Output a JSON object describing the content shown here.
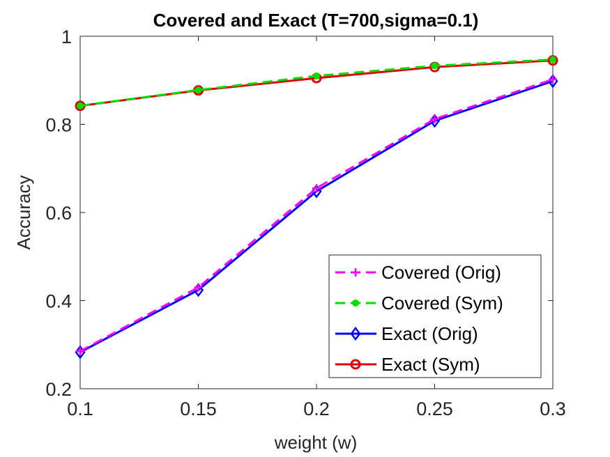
{
  "chart_data": {
    "type": "line",
    "title": "Covered and Exact (T=700,sigma=0.1)",
    "xlabel": "weight (w)",
    "ylabel": "Accuracy",
    "x": [
      0.1,
      0.15,
      0.2,
      0.25,
      0.3
    ],
    "xlim": [
      0.1,
      0.3
    ],
    "ylim": [
      0.2,
      1.0
    ],
    "xticks": [
      "0.1",
      "0.15",
      "0.2",
      "0.25",
      "0.3"
    ],
    "yticks": [
      "0.2",
      "0.4",
      "0.6",
      "0.8",
      "1"
    ],
    "legend_position": "bottom-right",
    "series": [
      {
        "name": "Covered (Orig)",
        "values": [
          0.285,
          0.43,
          0.655,
          0.812,
          0.902
        ],
        "color": "#ff00ff",
        "line": "dashed",
        "marker": "plus"
      },
      {
        "name": "Covered (Sym)",
        "values": [
          0.842,
          0.878,
          0.91,
          0.933,
          0.947
        ],
        "color": "#00dd00",
        "line": "dashed",
        "marker": "dot"
      },
      {
        "name": "Exact (Orig)",
        "values": [
          0.283,
          0.424,
          0.648,
          0.808,
          0.898
        ],
        "color": "#0000ff",
        "line": "solid",
        "marker": "diamond"
      },
      {
        "name": "Exact (Sym)",
        "values": [
          0.842,
          0.877,
          0.905,
          0.93,
          0.945
        ],
        "color": "#e00000",
        "line": "solid",
        "marker": "circle"
      }
    ]
  }
}
